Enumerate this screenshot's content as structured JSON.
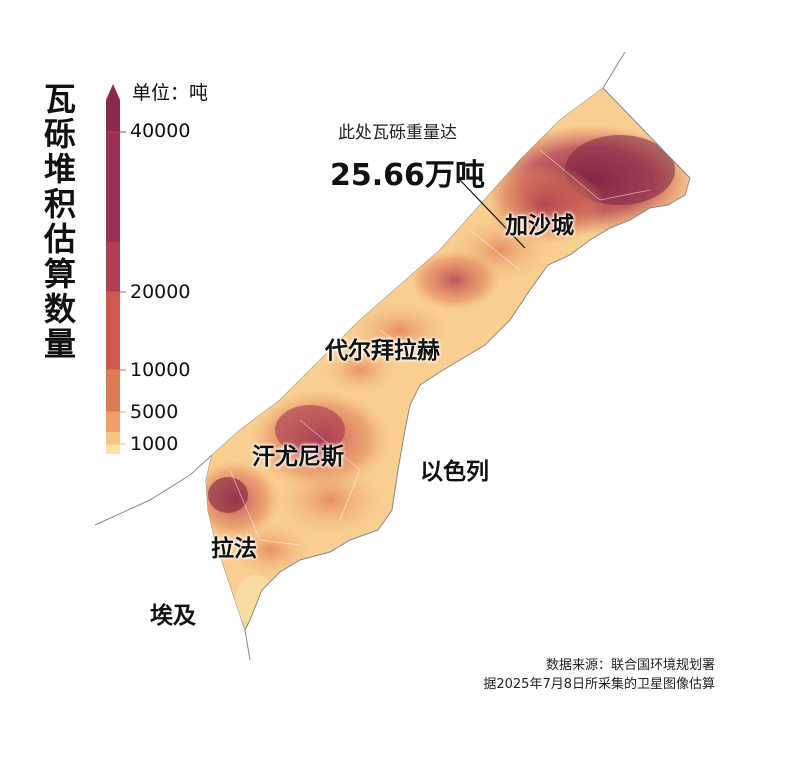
{
  "legend": {
    "title_chars": [
      "瓦",
      "砾",
      "堆",
      "积",
      "估",
      "算",
      "数",
      "量"
    ],
    "unit": "单位：吨",
    "ticks": [
      "40000",
      "20000",
      "10000",
      "5000",
      "1000"
    ],
    "colors": [
      "#8c2a4a",
      "#b33d52",
      "#cf5a4e",
      "#e07a55",
      "#ee9f68",
      "#f6c585",
      "#fbe3a8"
    ]
  },
  "annotation": {
    "caption": "此处瓦砾重量达",
    "value": "25.66万吨"
  },
  "places": {
    "gaza_city": "加沙城",
    "deir_al_balah": "代尔拜拉赫",
    "khan_younis": "汗尤尼斯",
    "rafah": "拉法",
    "israel": "以色列",
    "egypt": "埃及"
  },
  "source": {
    "line1": "数据来源：联合国环境规划署",
    "line2": "据2025年7月8日所采集的卫星图像估算"
  }
}
